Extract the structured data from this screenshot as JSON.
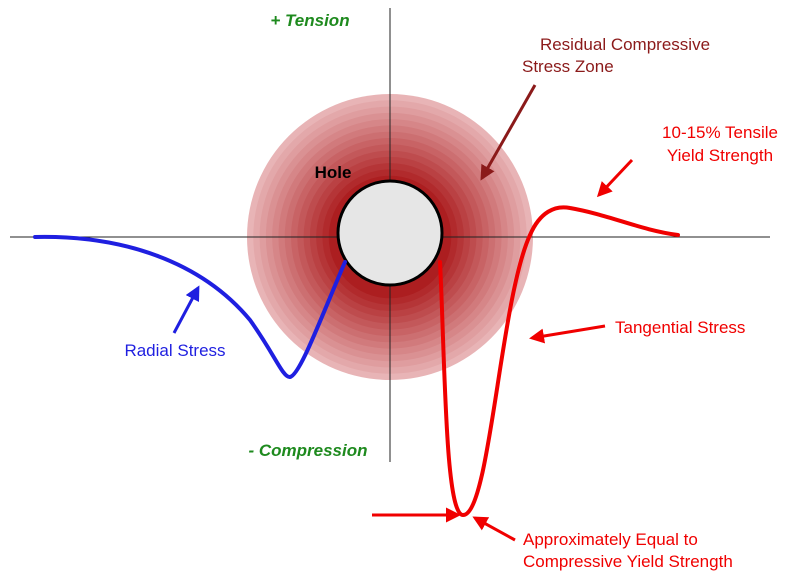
{
  "axes": {
    "positive_label": "+ Tension",
    "negative_label": "- Compression"
  },
  "zone": {
    "label_lines": [
      "Residual Compressive",
      "Stress Zone"
    ]
  },
  "hole": {
    "label": "Hole"
  },
  "curves": {
    "radial": {
      "label": "Radial Stress"
    },
    "tangential": {
      "label": "Tangential Stress"
    }
  },
  "annotations": {
    "tensile_peak": {
      "lines": [
        "10-15% Tensile",
        "Yield Strength"
      ]
    },
    "compressive_min": {
      "lines": [
        "Approximately Equal to",
        "Compressive Yield Strength"
      ]
    }
  }
}
